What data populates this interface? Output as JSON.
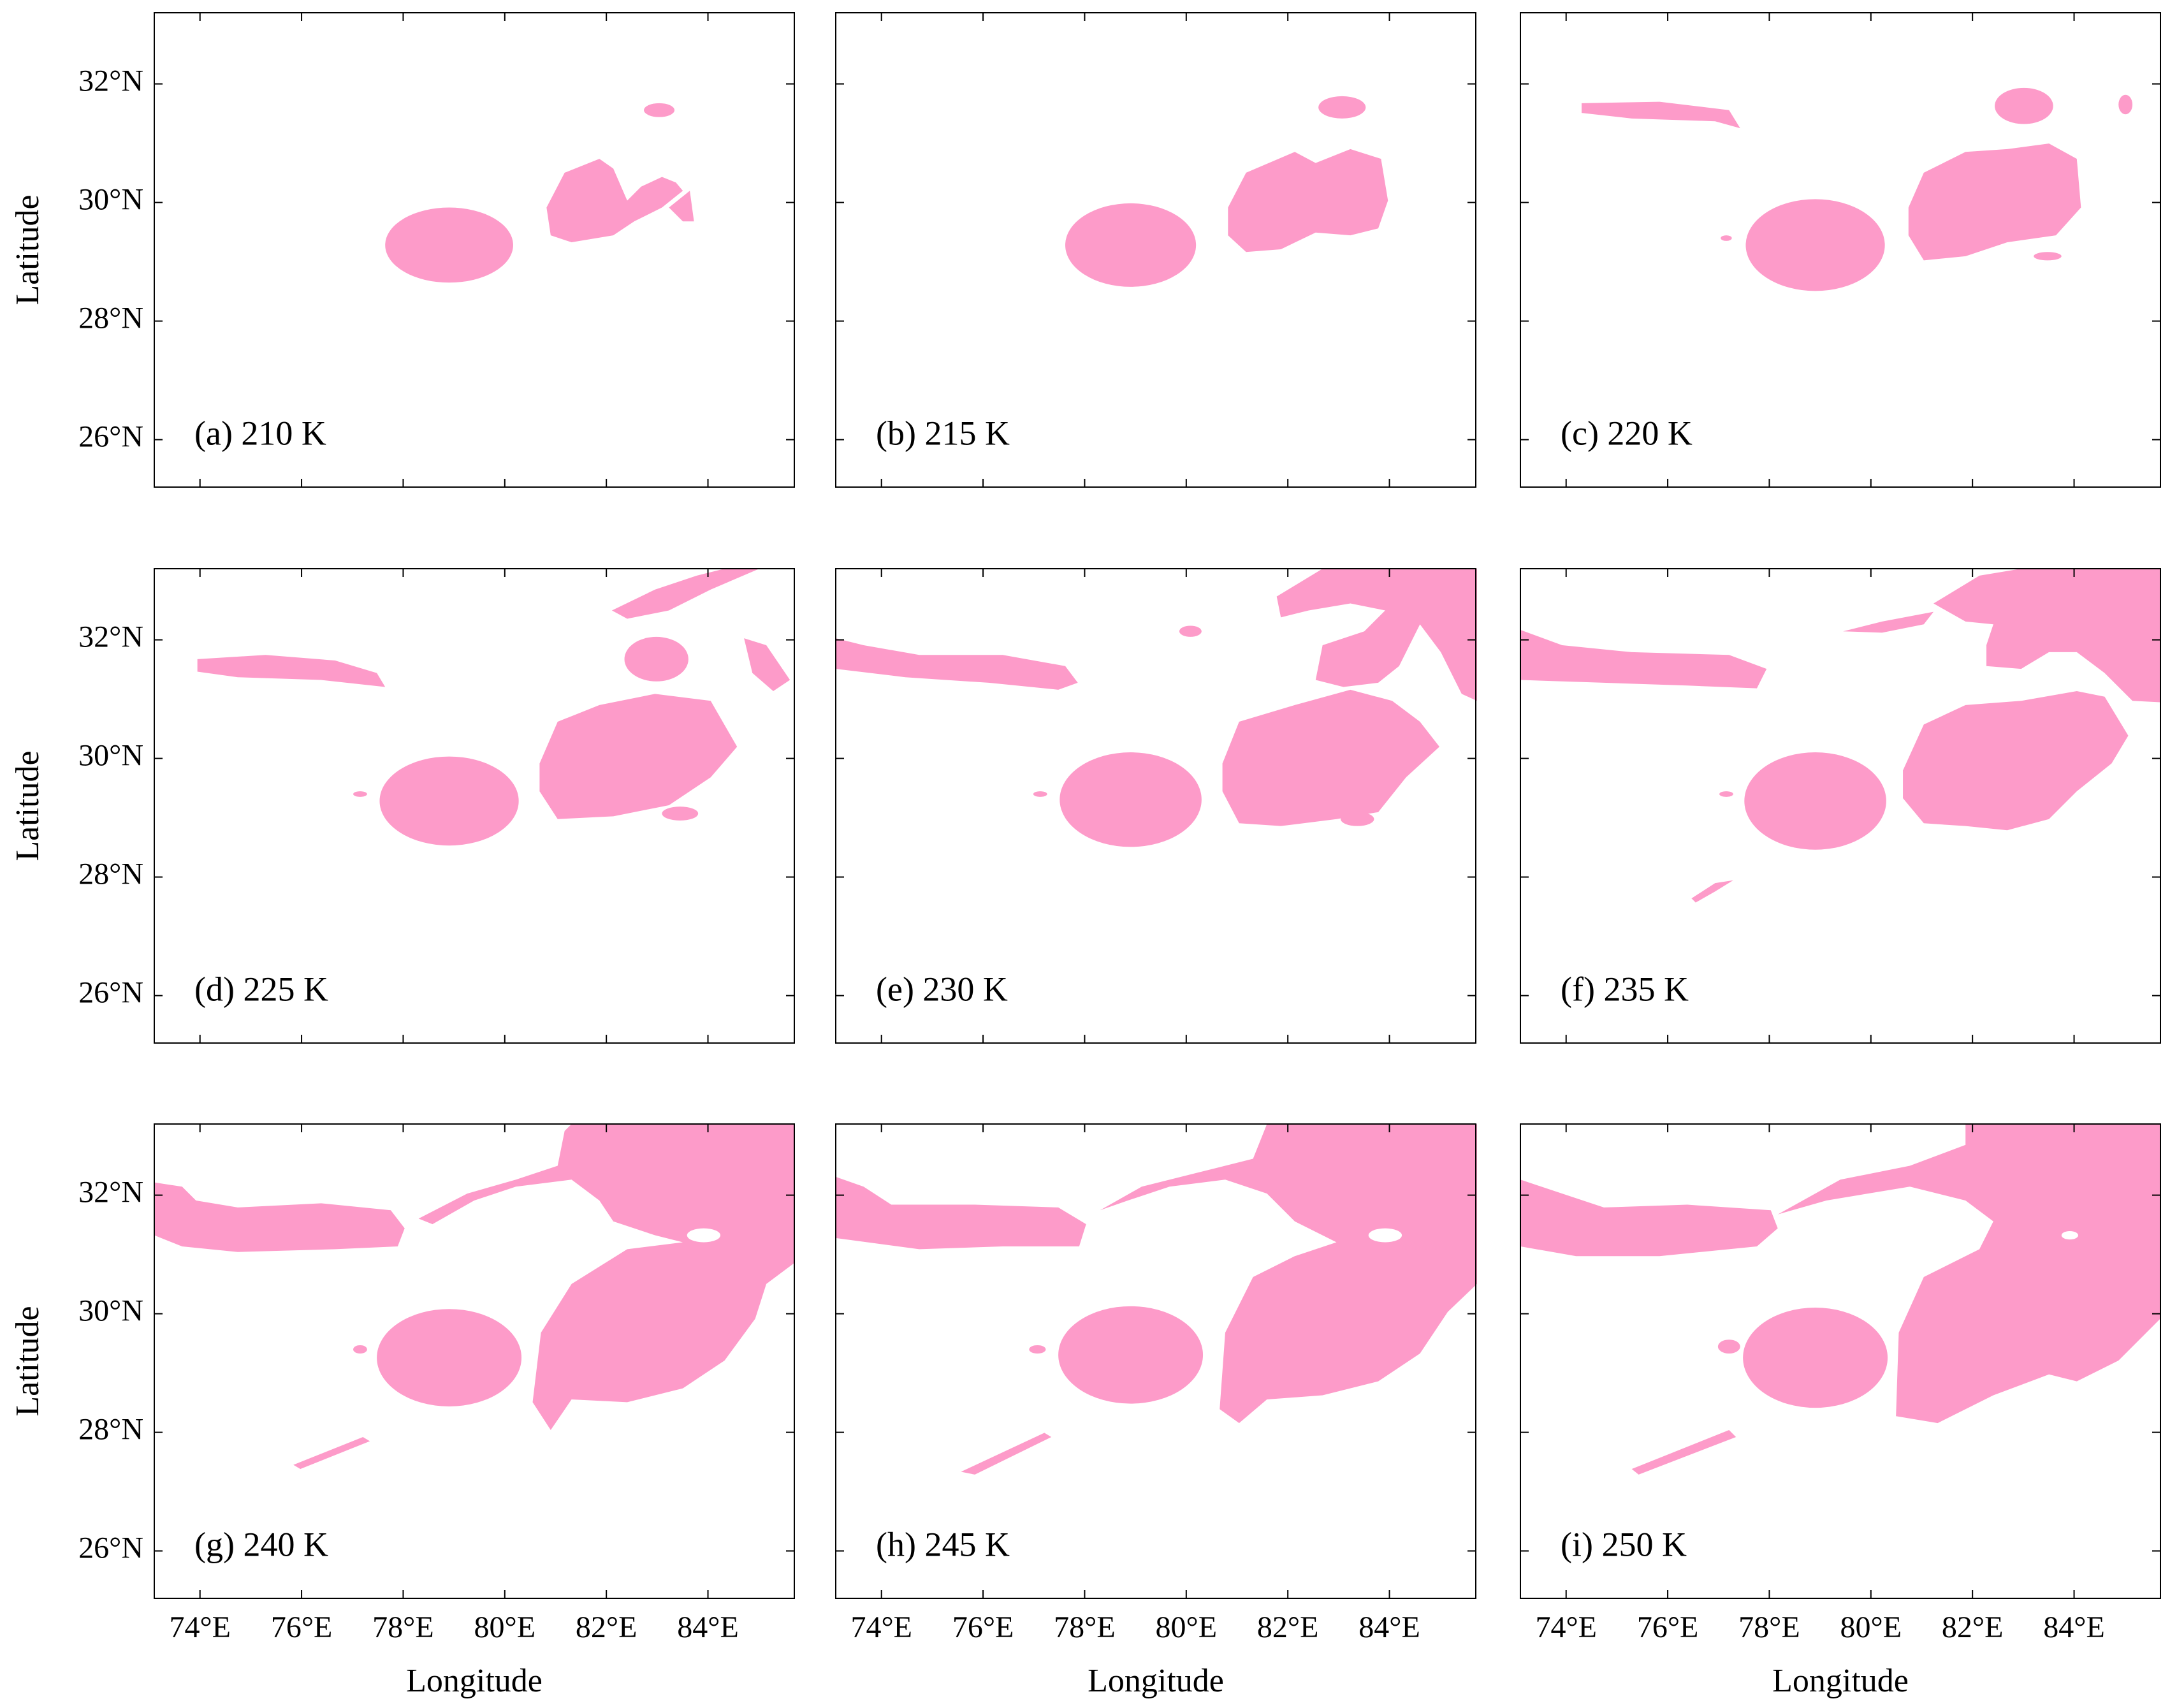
{
  "panels": [
    {
      "label": "(a) 210 K"
    },
    {
      "label": "(b) 215 K"
    },
    {
      "label": "(c) 220 K"
    },
    {
      "label": "(d) 225 K"
    },
    {
      "label": "(e) 230 K"
    },
    {
      "label": "(f) 235 K"
    },
    {
      "label": "(g) 240 K"
    },
    {
      "label": "(h) 245 K"
    },
    {
      "label": "(i) 250 K"
    }
  ],
  "x_axis": {
    "label": "Longitude",
    "lim": [
      73.1,
      85.7
    ],
    "ticks": [
      {
        "value": 74,
        "label": "74°E"
      },
      {
        "value": 76,
        "label": "76°E"
      },
      {
        "value": 78,
        "label": "78°E"
      },
      {
        "value": 80,
        "label": "80°E"
      },
      {
        "value": 82,
        "label": "82°E"
      },
      {
        "value": 84,
        "label": "84°E"
      }
    ]
  },
  "y_axis": {
    "label": "Latitude",
    "lim": [
      25.2,
      33.2
    ],
    "ticks": [
      {
        "value": 26,
        "label": "26°N"
      },
      {
        "value": 28,
        "label": "28°N"
      },
      {
        "value": 30,
        "label": "30°N"
      },
      {
        "value": 32,
        "label": "32°N"
      }
    ]
  }
}
